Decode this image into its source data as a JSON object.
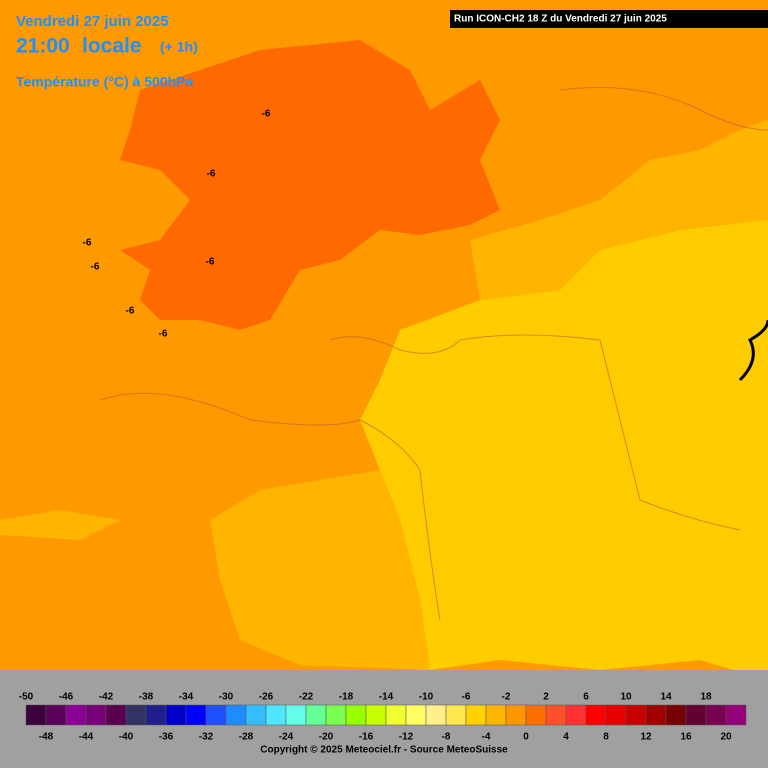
{
  "header": {
    "date": "Vendredi 27 juin 2025",
    "time": "21:00",
    "local": "locale",
    "offset": "(+ 1h)",
    "variable": "Température (°C) à 500hPa"
  },
  "run_label": "Run ICON-CH2 18 Z du Vendredi 27 juin 2025",
  "contour_labels": [
    "-6",
    "-6",
    "-6",
    "-6",
    "-6",
    "-6",
    "-6"
  ],
  "legend": {
    "values": [
      -50,
      -48,
      -46,
      -44,
      -42,
      -40,
      -38,
      -36,
      -34,
      -32,
      -30,
      -28,
      -26,
      -24,
      -22,
      -20,
      -18,
      -16,
      -14,
      -12,
      -10,
      -8,
      -6,
      -4,
      -2,
      0,
      2,
      4,
      6,
      8,
      10,
      12,
      14,
      16,
      18,
      20
    ],
    "colors": [
      "#3c003c",
      "#5a005a",
      "#8c0096",
      "#780078",
      "#5a0050",
      "#323264",
      "#1e1e8c",
      "#0000c8",
      "#0000ff",
      "#1e50ff",
      "#1e8cff",
      "#32beff",
      "#50e6ff",
      "#64ffe6",
      "#64ff96",
      "#78ff50",
      "#96ff00",
      "#c8ff00",
      "#f0ff32",
      "#ffff64",
      "#fff08c",
      "#ffe650",
      "#ffd200",
      "#ffb400",
      "#ff9600",
      "#ff6e00",
      "#ff5028",
      "#ff3232",
      "#ff0000",
      "#e60000",
      "#c80000",
      "#a00000",
      "#780000",
      "#640032",
      "#780050",
      "#960078"
    ]
  },
  "copyright": "Copyright © 2025 Meteociel.fr - Source MeteoSuisse"
}
